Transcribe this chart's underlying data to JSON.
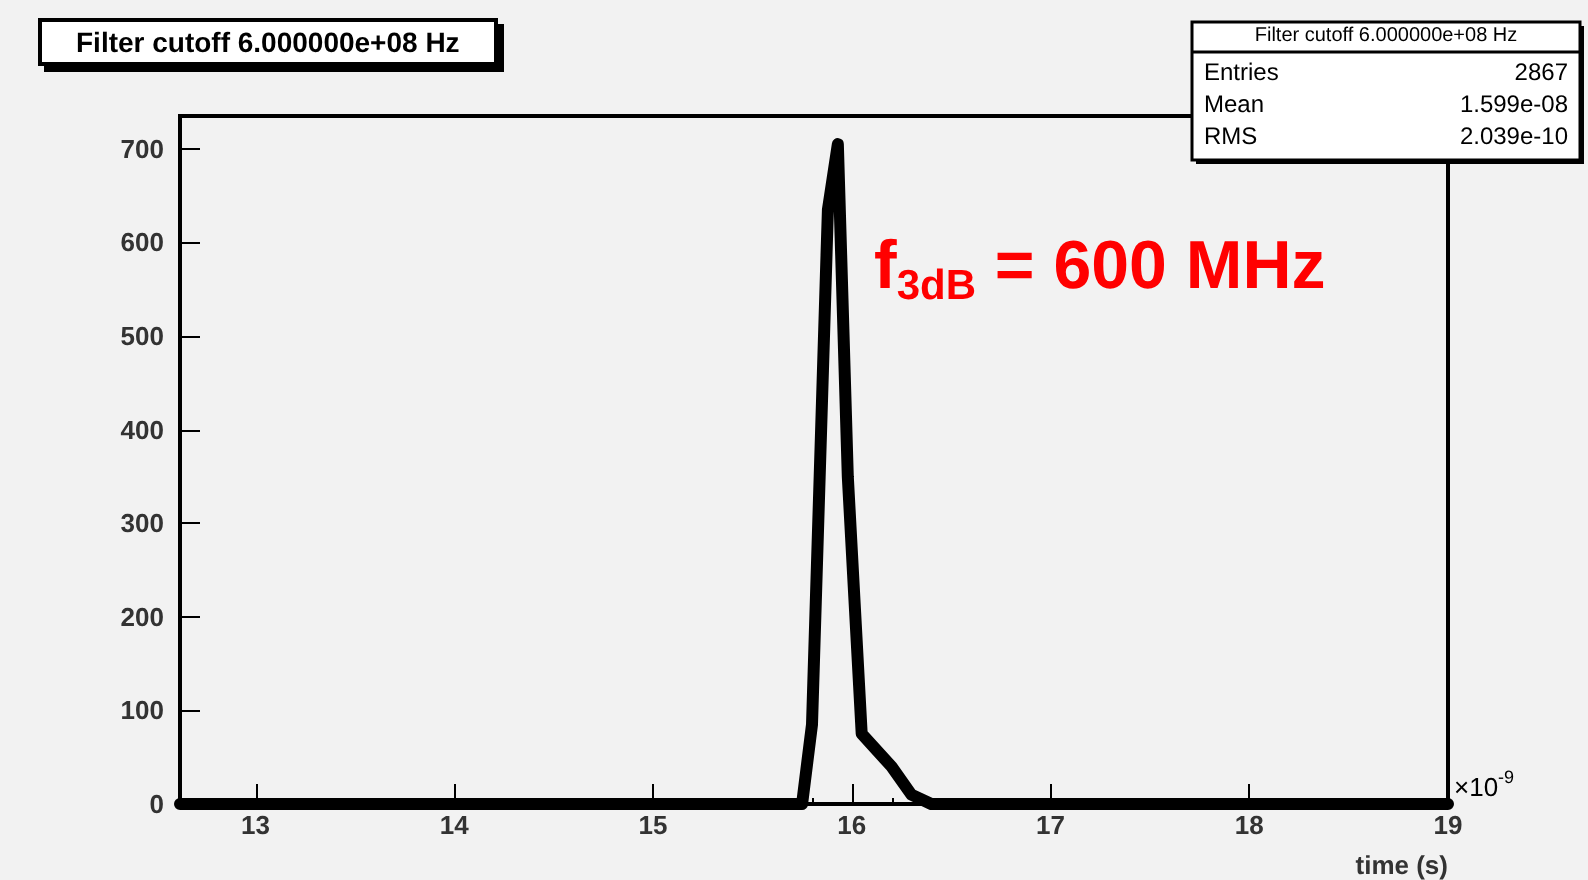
{
  "chart_data": {
    "type": "line",
    "title": "Filter cutoff 6.000000e+08 Hz",
    "xlabel": "time (s)",
    "x": [
      12.62,
      15.75,
      15.8,
      15.88,
      15.93,
      15.98,
      16.05,
      16.2,
      16.3,
      16.4,
      19
    ],
    "series": [
      {
        "color": "#000000",
        "values": [
          0,
          0,
          85,
          635,
          705,
          350,
          75,
          40,
          10,
          0,
          0
        ]
      }
    ],
    "xlim": [
      12.62,
      19
    ],
    "xticks": [
      13,
      14,
      15,
      16,
      17,
      18,
      19
    ],
    "ylim": [
      0,
      735
    ],
    "yticks": [
      0,
      100,
      200,
      300,
      400,
      500,
      600,
      700
    ],
    "grid": false,
    "marker": "none",
    "line_style": "solid",
    "annotations": [
      "Filter cutoff 6.000000e+08 Hz",
      "Entries 2867",
      "Mean 1.599e-08",
      "RMS 2.039e-10",
      "f$_{3dB}$ = 600 MHz",
      "×10$^{-9}$"
    ]
  }
}
